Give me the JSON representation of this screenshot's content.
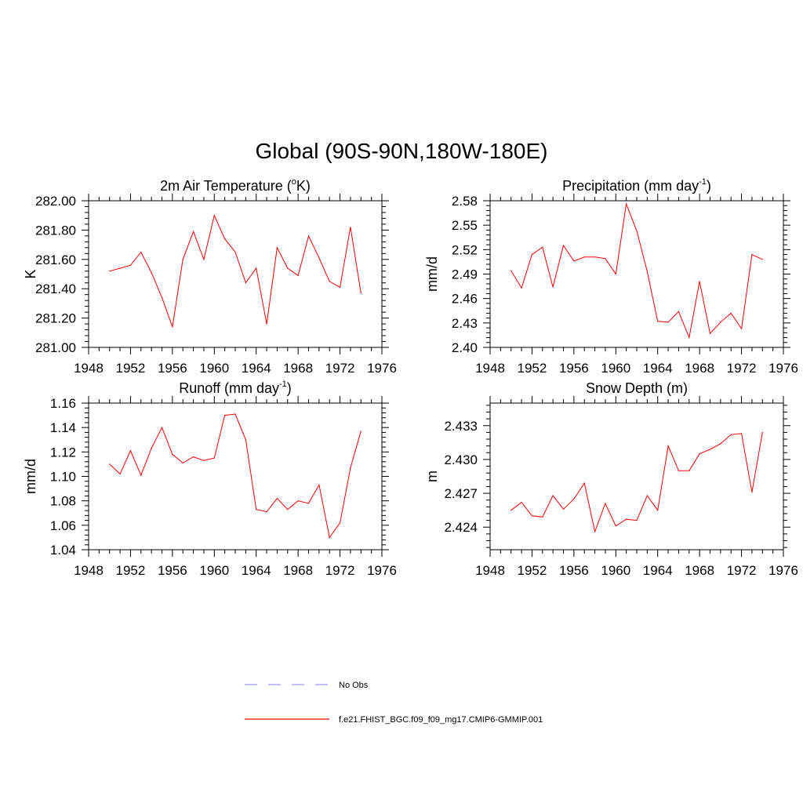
{
  "figure_title": "Global (90S-90N,180W-180E)",
  "legend": {
    "obs_label": "No Obs",
    "model_label": "f.e21.FHIST_BGC.f09_f09_mg17.CMIP6-GMMIP.001",
    "obs_color": "#9999ff",
    "model_color": "#ff0000"
  },
  "chart_data": [
    {
      "type": "line",
      "title": "2m Air Temperature (°K)",
      "title_parts": [
        "2m Air Temperature (",
        "o",
        "K)"
      ],
      "title_sup_index": 1,
      "xlabel": "",
      "ylabel": "K",
      "xlim": [
        1948,
        1976
      ],
      "ylim": [
        281.0,
        282.0
      ],
      "xticks": [
        1948,
        1952,
        1956,
        1960,
        1964,
        1968,
        1972,
        1976
      ],
      "yticks": [
        281.0,
        281.2,
        281.4,
        281.6,
        281.8,
        282.0
      ],
      "ytick_labels": [
        "281.00",
        "281.20",
        "281.40",
        "281.60",
        "281.80",
        "282.00"
      ],
      "x": [
        1950,
        1951,
        1952,
        1953,
        1954,
        1955,
        1956,
        1957,
        1958,
        1959,
        1960,
        1961,
        1962,
        1963,
        1964,
        1965,
        1966,
        1967,
        1968,
        1969,
        1970,
        1971,
        1972,
        1973,
        1974
      ],
      "values": [
        281.52,
        281.54,
        281.56,
        281.65,
        281.51,
        281.34,
        281.14,
        281.6,
        281.79,
        281.6,
        281.9,
        281.74,
        281.65,
        281.44,
        281.54,
        281.16,
        281.68,
        281.54,
        281.49,
        281.76,
        281.61,
        281.45,
        281.41,
        281.82,
        281.37
      ]
    },
    {
      "type": "line",
      "title": "Precipitation (mm day-1)",
      "title_parts": [
        "Precipitation (mm day",
        "-1",
        ")"
      ],
      "title_sup_index": 1,
      "xlabel": "",
      "ylabel": "mm/d",
      "xlim": [
        1948,
        1976
      ],
      "ylim": [
        2.4,
        2.58
      ],
      "xticks": [
        1948,
        1952,
        1956,
        1960,
        1964,
        1968,
        1972,
        1976
      ],
      "yticks": [
        2.4,
        2.43,
        2.46,
        2.49,
        2.52,
        2.55,
        2.58
      ],
      "ytick_labels": [
        "2.40",
        "2.43",
        "2.46",
        "2.49",
        "2.52",
        "2.55",
        "2.58"
      ],
      "x": [
        1950,
        1951,
        1952,
        1953,
        1954,
        1955,
        1956,
        1957,
        1958,
        1959,
        1960,
        1961,
        1962,
        1963,
        1964,
        1965,
        1966,
        1967,
        1968,
        1969,
        1970,
        1971,
        1972,
        1973,
        1974
      ],
      "values": [
        2.494,
        2.473,
        2.514,
        2.523,
        2.474,
        2.525,
        2.506,
        2.511,
        2.511,
        2.509,
        2.49,
        2.576,
        2.543,
        2.493,
        2.432,
        2.431,
        2.444,
        2.412,
        2.481,
        2.417,
        2.431,
        2.442,
        2.423,
        2.514,
        2.508
      ]
    },
    {
      "type": "line",
      "title": "Runoff (mm day-1)",
      "title_parts": [
        "Runoff (mm day",
        "-1",
        ")"
      ],
      "title_sup_index": 1,
      "xlabel": "",
      "ylabel": "mm/d",
      "xlim": [
        1948,
        1976
      ],
      "ylim": [
        1.04,
        1.16
      ],
      "xticks": [
        1948,
        1952,
        1956,
        1960,
        1964,
        1968,
        1972,
        1976
      ],
      "yticks": [
        1.04,
        1.06,
        1.08,
        1.1,
        1.12,
        1.14,
        1.16
      ],
      "ytick_labels": [
        "1.04",
        "1.06",
        "1.08",
        "1.10",
        "1.12",
        "1.14",
        "1.16"
      ],
      "x": [
        1950,
        1951,
        1952,
        1953,
        1954,
        1955,
        1956,
        1957,
        1958,
        1959,
        1960,
        1961,
        1962,
        1963,
        1964,
        1965,
        1966,
        1967,
        1968,
        1969,
        1970,
        1971,
        1972,
        1973,
        1974
      ],
      "values": [
        1.11,
        1.102,
        1.121,
        1.101,
        1.123,
        1.14,
        1.118,
        1.111,
        1.116,
        1.113,
        1.115,
        1.15,
        1.151,
        1.13,
        1.073,
        1.071,
        1.082,
        1.073,
        1.08,
        1.078,
        1.093,
        1.05,
        1.062,
        1.107,
        1.137
      ]
    },
    {
      "type": "line",
      "title": "Snow Depth (m)",
      "title_parts": [
        "Snow Depth (m)"
      ],
      "title_sup_index": -1,
      "xlabel": "",
      "ylabel": "m",
      "xlim": [
        1948,
        1976
      ],
      "ylim": [
        2.422,
        2.435
      ],
      "xticks": [
        1948,
        1952,
        1956,
        1960,
        1964,
        1968,
        1972,
        1976
      ],
      "yticks": [
        2.424,
        2.427,
        2.43,
        2.433
      ],
      "ytick_labels": [
        "2.424",
        "2.427",
        "2.430",
        "2.433"
      ],
      "x": [
        1950,
        1951,
        1952,
        1953,
        1954,
        1955,
        1956,
        1957,
        1958,
        1959,
        1960,
        1961,
        1962,
        1963,
        1964,
        1965,
        1966,
        1967,
        1968,
        1969,
        1970,
        1971,
        1972,
        1973,
        1974
      ],
      "values": [
        2.4255,
        2.4262,
        2.425,
        2.4249,
        2.4268,
        2.4256,
        2.4265,
        2.4279,
        2.4236,
        2.4261,
        2.4241,
        2.4247,
        2.4246,
        2.4268,
        2.4255,
        2.4312,
        2.429,
        2.429,
        2.4305,
        2.4309,
        2.4314,
        2.4322,
        2.4323,
        2.4271,
        2.4324
      ]
    }
  ]
}
